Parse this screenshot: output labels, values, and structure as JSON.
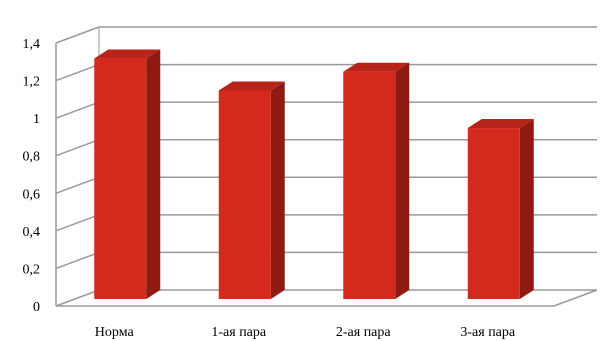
{
  "chart_data": {
    "type": "bar",
    "style": "3d-column",
    "categories": [
      "Норма",
      "1-ая пара",
      "2-ая пара",
      "3-ая пара"
    ],
    "values": [
      1.28,
      1.11,
      1.21,
      0.91
    ],
    "yticks": [
      "0",
      "0,2",
      "0,4",
      "0,6",
      "0,8",
      "1",
      "1,2",
      "1,4"
    ],
    "ylim": [
      0,
      1.4
    ],
    "grid": true,
    "legend": "none",
    "colors": {
      "bar_front": "#d42a1d",
      "bar_side": "#8e1a12",
      "bar_top": "#b8231a",
      "gridline": "#9a9a9a",
      "text": "#000000"
    }
  }
}
